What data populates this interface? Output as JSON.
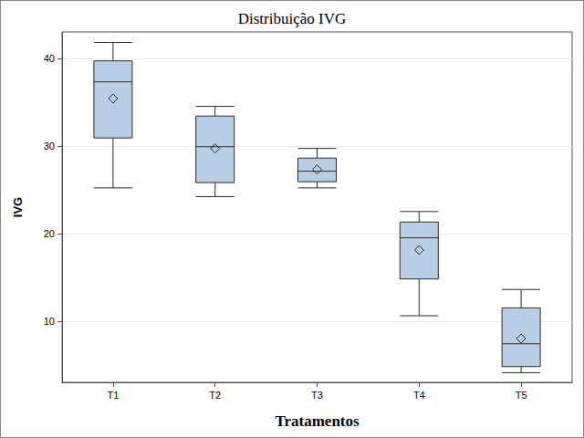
{
  "chart_data": {
    "type": "boxplot",
    "title": "Distribuição IVG",
    "x_label": "Tratamentos",
    "y_label": "IVG",
    "categories": [
      "T1",
      "T2",
      "T3",
      "T4",
      "T5"
    ],
    "series": [
      {
        "color": "#b9cde5",
        "values": [
          [
            25.2,
            30.9,
            37.3,
            39.7,
            41.8
          ],
          [
            24.2,
            25.8,
            29.9,
            33.4,
            34.5
          ],
          [
            25.2,
            25.9,
            27.1,
            28.6,
            29.7
          ],
          [
            10.6,
            14.8,
            19.5,
            21.3,
            22.5
          ],
          [
            4.1,
            4.8,
            7.4,
            11.5,
            13.6
          ]
        ],
        "means": [
          35.4,
          29.7,
          27.3,
          18.1,
          8.0
        ],
        "marker": "diamond"
      }
    ],
    "ylim": [
      3,
      43
    ],
    "yticks": [
      10,
      20,
      30,
      40
    ],
    "grid": true
  }
}
